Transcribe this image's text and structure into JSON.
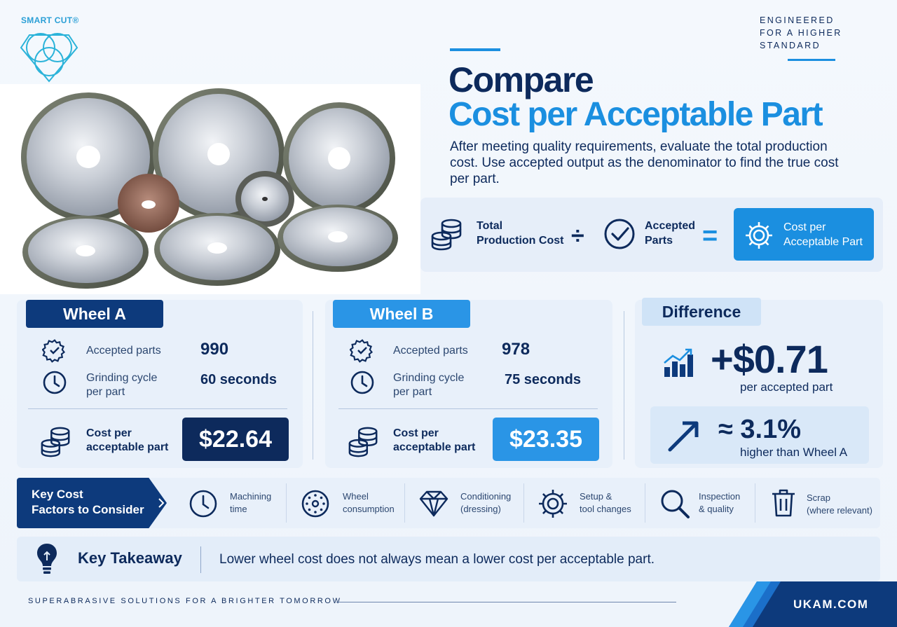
{
  "brand": {
    "name": "SMART CUT®"
  },
  "tagline": [
    "ENGINEERED",
    "FOR A HIGHER",
    "STANDARD"
  ],
  "hero": {
    "title_line1": "Compare",
    "title_line2": "Cost per Acceptable Part",
    "description": "After meeting quality requirements, evaluate the total production cost. Use accepted output as the denominator to find the true cost per part."
  },
  "formula": {
    "term1": [
      "Total",
      "Production Cost"
    ],
    "operator1": "÷",
    "term2": [
      "Accepted",
      "Parts"
    ],
    "operator2": "=",
    "result": [
      "Cost per",
      "Acceptable Part"
    ]
  },
  "wheel_a": {
    "title": "Wheel A",
    "accepted_label": "Accepted parts",
    "accepted_value": "990",
    "cycle_label": [
      "Grinding cycle",
      "per part"
    ],
    "cycle_value": "60 seconds",
    "cost_label": [
      "Cost per",
      "acceptable part"
    ],
    "cost_value": "$22.64"
  },
  "wheel_b": {
    "title": "Wheel B",
    "accepted_label": "Accepted parts",
    "accepted_value": "978",
    "cycle_label": [
      "Grinding cycle",
      "per part"
    ],
    "cycle_value": "75 seconds",
    "cost_label": [
      "Cost per",
      "acceptable part"
    ],
    "cost_value": "$23.35"
  },
  "difference": {
    "title": "Difference",
    "amount": "+$0.71",
    "amount_sub": "per accepted part",
    "percent": "≈ 3.1%",
    "percent_sub": "higher than Wheel A"
  },
  "factors": {
    "title": [
      "Key Cost",
      "Factors to Consider"
    ],
    "items": [
      {
        "label": [
          "Machining",
          "time"
        ],
        "icon": "clock-icon"
      },
      {
        "label": [
          "Wheel",
          "consumption"
        ],
        "icon": "wheel-icon"
      },
      {
        "label": [
          "Conditioning",
          "(dressing)"
        ],
        "icon": "diamond-icon"
      },
      {
        "label": [
          "Setup &",
          "tool changes"
        ],
        "icon": "gear-icon"
      },
      {
        "label": [
          "Inspection",
          "& quality"
        ],
        "icon": "magnifier-icon"
      },
      {
        "label": [
          "Scrap",
          "(where relevant)"
        ],
        "icon": "trash-icon"
      }
    ]
  },
  "takeaway": {
    "title": "Key Takeaway",
    "text": "Lower wheel cost does not always mean a lower cost per acceptable part."
  },
  "footer": {
    "slogan": "SUPERABRASIVE SOLUTIONS FOR A BRIGHTER TOMORROW",
    "url": "UKAM.COM"
  },
  "colors": {
    "navy": "#0d2a5c",
    "brand_blue": "#1b8fe0",
    "dark_blue": "#0d3a7c",
    "card_bg": "#e8f0fa"
  }
}
